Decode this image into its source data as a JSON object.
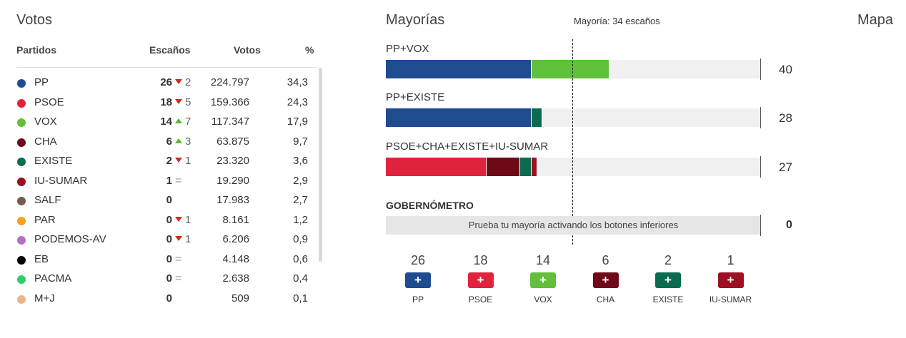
{
  "votos": {
    "title": "Votos",
    "headers": {
      "party": "Partidos",
      "seats": "Escaños",
      "votes": "Votos",
      "pct": "%"
    },
    "rows": [
      {
        "party": "PP",
        "color": "#1f4b8f",
        "seats": "26",
        "dir": "down",
        "chg": "2",
        "votes": "224.797",
        "pct": "34,3"
      },
      {
        "party": "PSOE",
        "color": "#e0233d",
        "seats": "18",
        "dir": "down",
        "chg": "5",
        "votes": "159.366",
        "pct": "24,3"
      },
      {
        "party": "VOX",
        "color": "#63be3a",
        "seats": "14",
        "dir": "up",
        "chg": "7",
        "votes": "117.347",
        "pct": "17,9"
      },
      {
        "party": "CHA",
        "color": "#6e0a18",
        "seats": "6",
        "dir": "up",
        "chg": "3",
        "votes": "63.875",
        "pct": "9,7"
      },
      {
        "party": "EXISTE",
        "color": "#0a6b4f",
        "seats": "2",
        "dir": "down",
        "chg": "1",
        "votes": "23.320",
        "pct": "3,6"
      },
      {
        "party": "IU-SUMAR",
        "color": "#9b1023",
        "seats": "1",
        "dir": "eq",
        "chg": "=",
        "votes": "19.290",
        "pct": "2,9"
      },
      {
        "party": "SALF",
        "color": "#7a5a4a",
        "seats": "0",
        "dir": "none",
        "chg": "",
        "votes": "17.983",
        "pct": "2,7"
      },
      {
        "party": "PAR",
        "color": "#f3a21b",
        "seats": "0",
        "dir": "down",
        "chg": "1",
        "votes": "8.161",
        "pct": "1,2"
      },
      {
        "party": "PODEMOS-AV",
        "color": "#b56fc0",
        "seats": "0",
        "dir": "down",
        "chg": "1",
        "votes": "6.206",
        "pct": "0,9"
      },
      {
        "party": "EB",
        "color": "#000000",
        "seats": "0",
        "dir": "eq",
        "chg": "=",
        "votes": "4.148",
        "pct": "0,6"
      },
      {
        "party": "PACMA",
        "color": "#2ecc6a",
        "seats": "0",
        "dir": "eq",
        "chg": "=",
        "votes": "2.638",
        "pct": "0,4"
      },
      {
        "party": "M+J",
        "color": "#e9b48a",
        "seats": "0",
        "dir": "none",
        "chg": "",
        "votes": "509",
        "pct": "0,1"
      }
    ]
  },
  "mayorias": {
    "title": "Mayorías",
    "note": "Mayoría: 34 escaños",
    "max_seats": 67,
    "coalitions": [
      {
        "label": "PP+VOX",
        "total": "40",
        "segments": [
          {
            "seats": 26,
            "color": "#1f4b8f"
          },
          {
            "seats": 14,
            "color": "#5fc13a"
          }
        ]
      },
      {
        "label": "PP+EXISTE",
        "total": "28",
        "segments": [
          {
            "seats": 26,
            "color": "#1f4b8f"
          },
          {
            "seats": 2,
            "color": "#0a6b4f"
          }
        ]
      },
      {
        "label": "PSOE+CHA+EXISTE+IU-SUMAR",
        "total": "27",
        "segments": [
          {
            "seats": 18,
            "color": "#e0233d"
          },
          {
            "seats": 6,
            "color": "#6e0a18"
          },
          {
            "seats": 2,
            "color": "#0a6b4f"
          },
          {
            "seats": 1,
            "color": "#9b1023"
          }
        ]
      }
    ],
    "gob": {
      "title": "GOBERNÓMETRO",
      "hint": "Prueba tu mayoría activando los botones inferiores",
      "total": "0"
    },
    "toggles": [
      {
        "seats": "26",
        "name": "PP",
        "color": "#1f4b8f",
        "label": "+"
      },
      {
        "seats": "18",
        "name": "PSOE",
        "color": "#e0233d",
        "label": "+"
      },
      {
        "seats": "14",
        "name": "VOX",
        "color": "#63be3a",
        "label": "+"
      },
      {
        "seats": "6",
        "name": "CHA",
        "color": "#6e0a18",
        "label": "+"
      },
      {
        "seats": "2",
        "name": "EXISTE",
        "color": "#0a6b4f",
        "label": "+"
      },
      {
        "seats": "1",
        "name": "IU-SUMAR",
        "color": "#9b1023",
        "label": "+"
      }
    ]
  },
  "mapa": {
    "title": "Mapa"
  }
}
